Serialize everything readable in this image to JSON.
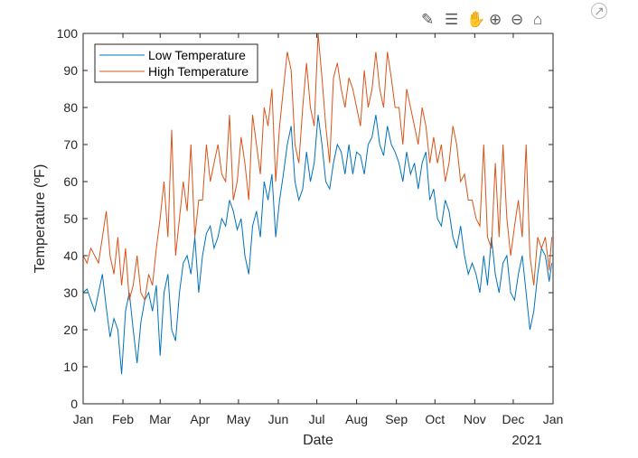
{
  "toolbar": {
    "icons": [
      "brush-icon",
      "data-tips-icon",
      "pan-icon",
      "zoom-in-icon",
      "zoom-out-icon",
      "home-icon"
    ],
    "export_icon": "export-arrow-icon"
  },
  "chart_data": {
    "type": "line",
    "title": "",
    "xlabel": "Date",
    "ylabel": "Temperature (ºF)",
    "x_secondary_label": "2021",
    "ylim": [
      0,
      100
    ],
    "yticks": [
      0,
      10,
      20,
      30,
      40,
      50,
      60,
      70,
      80,
      90,
      100
    ],
    "xlim": [
      "2020-01-01",
      "2021-01-01"
    ],
    "xticks": [
      {
        "date": "2020-01-01",
        "label": "Jan"
      },
      {
        "date": "2020-02-01",
        "label": "Feb"
      },
      {
        "date": "2020-03-01",
        "label": "Mar"
      },
      {
        "date": "2020-04-01",
        "label": "Apr"
      },
      {
        "date": "2020-05-01",
        "label": "May"
      },
      {
        "date": "2020-06-01",
        "label": "Jun"
      },
      {
        "date": "2020-07-01",
        "label": "Jul"
      },
      {
        "date": "2020-08-01",
        "label": "Aug"
      },
      {
        "date": "2020-09-01",
        "label": "Sep"
      },
      {
        "date": "2020-10-01",
        "label": "Oct"
      },
      {
        "date": "2020-11-01",
        "label": "Nov"
      },
      {
        "date": "2020-12-01",
        "label": "Dec"
      },
      {
        "date": "2021-01-01",
        "label": "Jan"
      }
    ],
    "grid": false,
    "legend": "top-left",
    "x": [
      "2020-01-01",
      "2020-01-04",
      "2020-01-07",
      "2020-01-10",
      "2020-01-13",
      "2020-01-16",
      "2020-01-19",
      "2020-01-22",
      "2020-01-25",
      "2020-01-28",
      "2020-01-31",
      "2020-02-03",
      "2020-02-06",
      "2020-02-09",
      "2020-02-12",
      "2020-02-15",
      "2020-02-18",
      "2020-02-21",
      "2020-02-24",
      "2020-02-27",
      "2020-03-01",
      "2020-03-04",
      "2020-03-07",
      "2020-03-10",
      "2020-03-13",
      "2020-03-16",
      "2020-03-19",
      "2020-03-22",
      "2020-03-25",
      "2020-03-28",
      "2020-03-31",
      "2020-04-03",
      "2020-04-06",
      "2020-04-09",
      "2020-04-12",
      "2020-04-15",
      "2020-04-18",
      "2020-04-21",
      "2020-04-24",
      "2020-04-27",
      "2020-04-30",
      "2020-05-03",
      "2020-05-06",
      "2020-05-09",
      "2020-05-12",
      "2020-05-15",
      "2020-05-18",
      "2020-05-21",
      "2020-05-24",
      "2020-05-27",
      "2020-05-30",
      "2020-06-02",
      "2020-06-05",
      "2020-06-08",
      "2020-06-11",
      "2020-06-14",
      "2020-06-17",
      "2020-06-20",
      "2020-06-23",
      "2020-06-26",
      "2020-06-29",
      "2020-07-02",
      "2020-07-05",
      "2020-07-08",
      "2020-07-11",
      "2020-07-14",
      "2020-07-17",
      "2020-07-20",
      "2020-07-23",
      "2020-07-26",
      "2020-07-29",
      "2020-08-01",
      "2020-08-04",
      "2020-08-07",
      "2020-08-10",
      "2020-08-13",
      "2020-08-16",
      "2020-08-19",
      "2020-08-22",
      "2020-08-25",
      "2020-08-28",
      "2020-08-31",
      "2020-09-03",
      "2020-09-06",
      "2020-09-09",
      "2020-09-12",
      "2020-09-15",
      "2020-09-18",
      "2020-09-21",
      "2020-09-24",
      "2020-09-27",
      "2020-09-30",
      "2020-10-03",
      "2020-10-06",
      "2020-10-09",
      "2020-10-12",
      "2020-10-15",
      "2020-10-18",
      "2020-10-21",
      "2020-10-24",
      "2020-10-27",
      "2020-10-30",
      "2020-11-02",
      "2020-11-05",
      "2020-11-08",
      "2020-11-11",
      "2020-11-14",
      "2020-11-17",
      "2020-11-20",
      "2020-11-23",
      "2020-11-26",
      "2020-11-29",
      "2020-12-02",
      "2020-12-05",
      "2020-12-08",
      "2020-12-11",
      "2020-12-14",
      "2020-12-17",
      "2020-12-20",
      "2020-12-23",
      "2020-12-26",
      "2020-12-29",
      "2020-12-31"
    ],
    "series": [
      {
        "name": "Low Temperature",
        "color": "#0072BD",
        "values": [
          30,
          31,
          28,
          25,
          30,
          35,
          26,
          18,
          23,
          20,
          8,
          25,
          30,
          20,
          11,
          22,
          28,
          30,
          25,
          32,
          13,
          30,
          35,
          20,
          17,
          30,
          38,
          40,
          35,
          45,
          30,
          40,
          46,
          48,
          42,
          45,
          50,
          48,
          55,
          52,
          47,
          50,
          40,
          35,
          48,
          52,
          45,
          60,
          55,
          62,
          45,
          55,
          62,
          70,
          75,
          60,
          55,
          58,
          68,
          60,
          65,
          78,
          70,
          60,
          58,
          65,
          70,
          68,
          62,
          70,
          62,
          68,
          67,
          62,
          70,
          72,
          78,
          70,
          67,
          75,
          70,
          68,
          65,
          60,
          68,
          62,
          65,
          58,
          65,
          68,
          55,
          58,
          50,
          48,
          55,
          52,
          45,
          42,
          48,
          40,
          35,
          38,
          35,
          30,
          40,
          32,
          45,
          35,
          30,
          38,
          40,
          30,
          28,
          35,
          40,
          30,
          20,
          25,
          35,
          42,
          40,
          33,
          38
        ]
      },
      {
        "name": "High Temperature",
        "color": "#D95319",
        "values": [
          40,
          38,
          42,
          40,
          38,
          45,
          52,
          40,
          35,
          45,
          32,
          42,
          28,
          32,
          40,
          30,
          28,
          35,
          32,
          42,
          50,
          60,
          45,
          74,
          40,
          50,
          60,
          52,
          70,
          45,
          55,
          55,
          70,
          60,
          65,
          70,
          62,
          60,
          78,
          55,
          60,
          72,
          65,
          55,
          78,
          70,
          62,
          80,
          75,
          85,
          60,
          75,
          85,
          95,
          90,
          70,
          65,
          80,
          92,
          80,
          75,
          100,
          88,
          75,
          65,
          88,
          92,
          85,
          80,
          88,
          85,
          80,
          75,
          90,
          80,
          85,
          95,
          85,
          80,
          95,
          88,
          80,
          80,
          70,
          85,
          80,
          75,
          70,
          80,
          75,
          65,
          72,
          65,
          70,
          60,
          65,
          75,
          70,
          60,
          62,
          55,
          55,
          50,
          48,
          70,
          45,
          42,
          65,
          45,
          70,
          50,
          40,
          48,
          55,
          45,
          70,
          40,
          32,
          45,
          42,
          45,
          36,
          45
        ]
      }
    ]
  }
}
